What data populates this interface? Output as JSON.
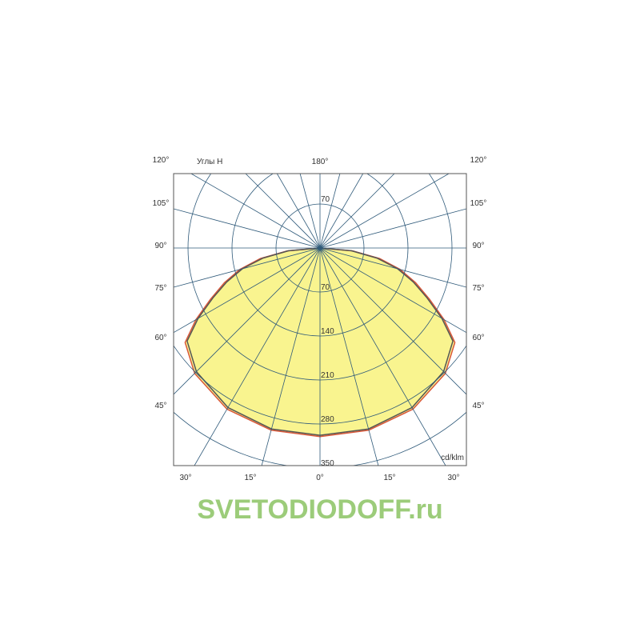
{
  "chart_data": {
    "type": "polar",
    "unit_label": "cd/klm",
    "angle_title": "Углы Н",
    "radial_ticks": [
      "70",
      "140",
      "210",
      "280",
      "350"
    ],
    "radial_top_tick": "70",
    "radial_max": 350,
    "angle_step_deg": 15,
    "angle_labels_left": [
      "120°",
      "105°",
      "90°",
      "75°",
      "60°",
      "45°",
      "30°",
      "15°"
    ],
    "angle_labels_right": [
      "120°",
      "105°",
      "90°",
      "75°",
      "60°",
      "45°",
      "30°",
      "15°"
    ],
    "angle_label_top": "180°",
    "angle_label_bottom": "0°",
    "series": [
      {
        "color": "#d9573a",
        "angles": [
          0,
          15,
          30,
          45,
          55,
          60,
          65,
          70,
          75,
          80,
          85,
          90
        ],
        "values": [
          300,
          300,
          296,
          282,
          262,
          228,
          192,
          162,
          132,
          96,
          52,
          0
        ]
      },
      {
        "color": "#555555",
        "angles": [
          0,
          15,
          30,
          45,
          55,
          60,
          65,
          70,
          75,
          80,
          85,
          90
        ],
        "values": [
          298,
          298,
          293,
          278,
          258,
          224,
          188,
          158,
          128,
          92,
          50,
          0
        ]
      }
    ],
    "fill_color": "#f9f48f",
    "grid_color": "#2f5a7a"
  },
  "watermark": "SVETODIODOFF.ru"
}
